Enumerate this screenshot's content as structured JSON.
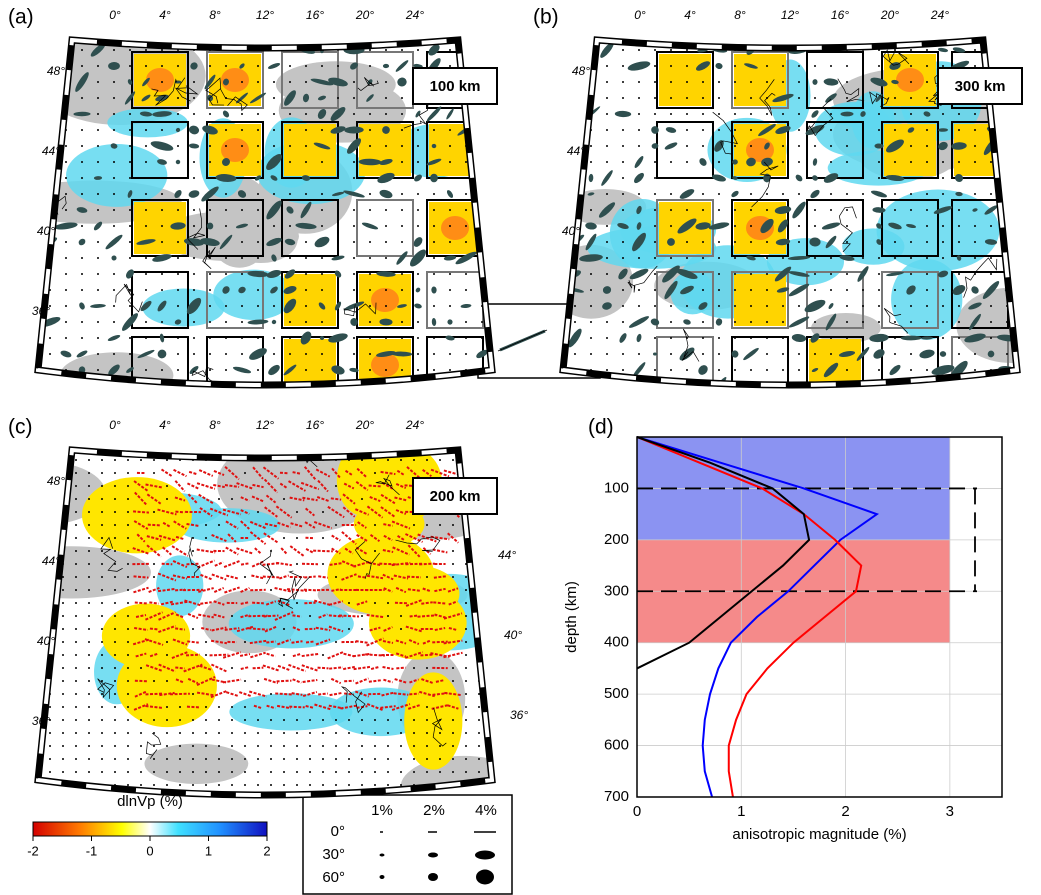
{
  "panels": [
    {
      "label": "(a)",
      "depth": "100 km",
      "lon_labels": [
        "0°",
        "4°",
        "8°",
        "12°",
        "16°",
        "20°",
        "24°"
      ],
      "lat_labels": [
        "48°",
        "44°",
        "40°",
        "36°"
      ]
    },
    {
      "label": "(b)",
      "depth": "300 km",
      "lon_labels": [
        "0°",
        "4°",
        "8°",
        "12°",
        "16°",
        "20°",
        "24°"
      ],
      "lat_labels": [
        "48°",
        "44°",
        "40°"
      ]
    },
    {
      "label": "(c)",
      "depth": "200 km",
      "lon_labels": [
        "0°",
        "4°",
        "8°",
        "12°",
        "16°",
        "20°",
        "24°"
      ],
      "lat_labels": [
        "48°",
        "44°",
        "40°",
        "36°"
      ],
      "lat_labels_right": [
        "44°",
        "40°",
        "36°"
      ]
    }
  ],
  "colorbar": {
    "title": "dlnVp (%)",
    "ticks": [
      -2,
      -1,
      0,
      1,
      2
    ]
  },
  "legend_table": {
    "columns": [
      "1%",
      "2%",
      "4%"
    ],
    "rows": [
      "0°",
      "30°",
      "60°"
    ]
  },
  "chart_data": {
    "type": "line",
    "panel_label": "(d)",
    "x_label": "anisotropic magnitude (%)",
    "y_label": "depth (km)",
    "depth": [
      0,
      50,
      100,
      150,
      200,
      250,
      300,
      350,
      400,
      450,
      500,
      550,
      600,
      650,
      700
    ],
    "series": [
      {
        "color": "#0000ff",
        "values": [
          0,
          0.8,
          1.6,
          2.3,
          1.95,
          1.7,
          1.45,
          1.15,
          0.9,
          0.78,
          0.7,
          0.65,
          0.63,
          0.65,
          0.72
        ]
      },
      {
        "color": "#ff0000",
        "values": [
          0,
          0.6,
          1.2,
          1.6,
          1.9,
          2.15,
          2.1,
          1.8,
          1.5,
          1.25,
          1.05,
          0.95,
          0.88,
          0.88,
          0.92
        ]
      },
      {
        "color": "#000000",
        "values": [
          0,
          0.7,
          1.3,
          1.6,
          1.65,
          1.4,
          1.1,
          0.8,
          0.5,
          0,
          null,
          null,
          null,
          null,
          null
        ]
      }
    ],
    "bands": [
      {
        "from": 0,
        "to": 200,
        "xmax": 3,
        "color": "#8b93f2"
      },
      {
        "from": 200,
        "to": 400,
        "xmax": 3,
        "color": "#f58a8a"
      }
    ],
    "dashed_depths": [
      100,
      300
    ],
    "xlim": [
      0,
      3.5
    ],
    "xticks": [
      0,
      1,
      2,
      3
    ],
    "ylim": [
      0,
      700
    ],
    "yticks": [
      100,
      200,
      300,
      400,
      500,
      600,
      700
    ],
    "grid": true
  }
}
